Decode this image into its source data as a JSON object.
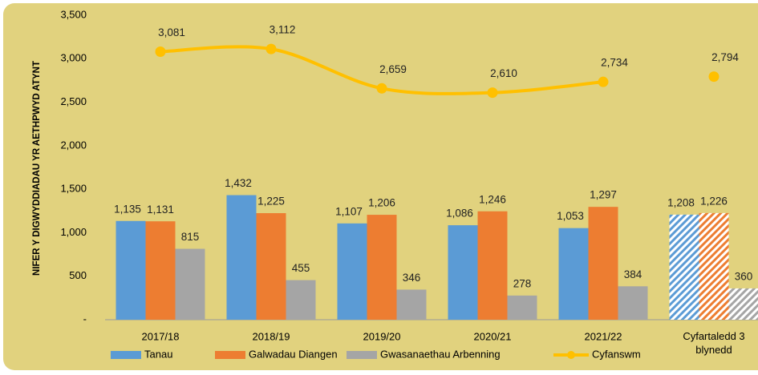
{
  "chart_data": {
    "type": "bar_line",
    "y_axis_label": "NIFER Y DIGWYDDIADAU YR AETHPWYD ATYNT",
    "categories": [
      "2017/18",
      "2018/19",
      "2019/20",
      "2020/21",
      "2021/22",
      "Cyfartaledd 3 blynedd"
    ],
    "series": [
      {
        "name": "Tanau",
        "color": "#5b9bd5",
        "type": "bar",
        "values": [
          1135,
          1432,
          1107,
          1086,
          1053,
          1208
        ],
        "value_labels": [
          "1,135",
          "1,432",
          "1,107",
          "1,086",
          "1,053",
          "1,208"
        ]
      },
      {
        "name": "Galwadau Diangen",
        "color": "#ed7d31",
        "type": "bar",
        "values": [
          1131,
          1225,
          1206,
          1246,
          1297,
          1226
        ],
        "value_labels": [
          "1,131",
          "1,225",
          "1,206",
          "1,246",
          "1,297",
          "1,226"
        ]
      },
      {
        "name": "Gwasanaethau Arbenning",
        "color": "#a5a5a5",
        "type": "bar",
        "values": [
          815,
          455,
          346,
          278,
          384,
          360
        ]
      },
      {
        "name": "Cyfanswm",
        "color": "#ffc000",
        "type": "line",
        "values": [
          3081,
          3112,
          2659,
          2610,
          2734,
          2794
        ],
        "value_labels": [
          "3,081",
          "3,112",
          "2,659",
          "2,610",
          "2,734",
          "2,794"
        ],
        "connect_last": false
      }
    ],
    "hatch_last_category": true,
    "ylim": [
      0,
      3500
    ],
    "yticks": [
      {
        "value": 0,
        "label": "-"
      },
      500,
      {
        "value": 1000,
        "label": "1,000"
      },
      {
        "value": 1500,
        "label": "1,500"
      },
      {
        "value": 2000,
        "label": "2,000"
      },
      {
        "value": 2500,
        "label": "2,500"
      },
      {
        "value": 3000,
        "label": "3,000"
      },
      {
        "value": 3500,
        "label": "3,500"
      }
    ],
    "legend": "bottom"
  }
}
